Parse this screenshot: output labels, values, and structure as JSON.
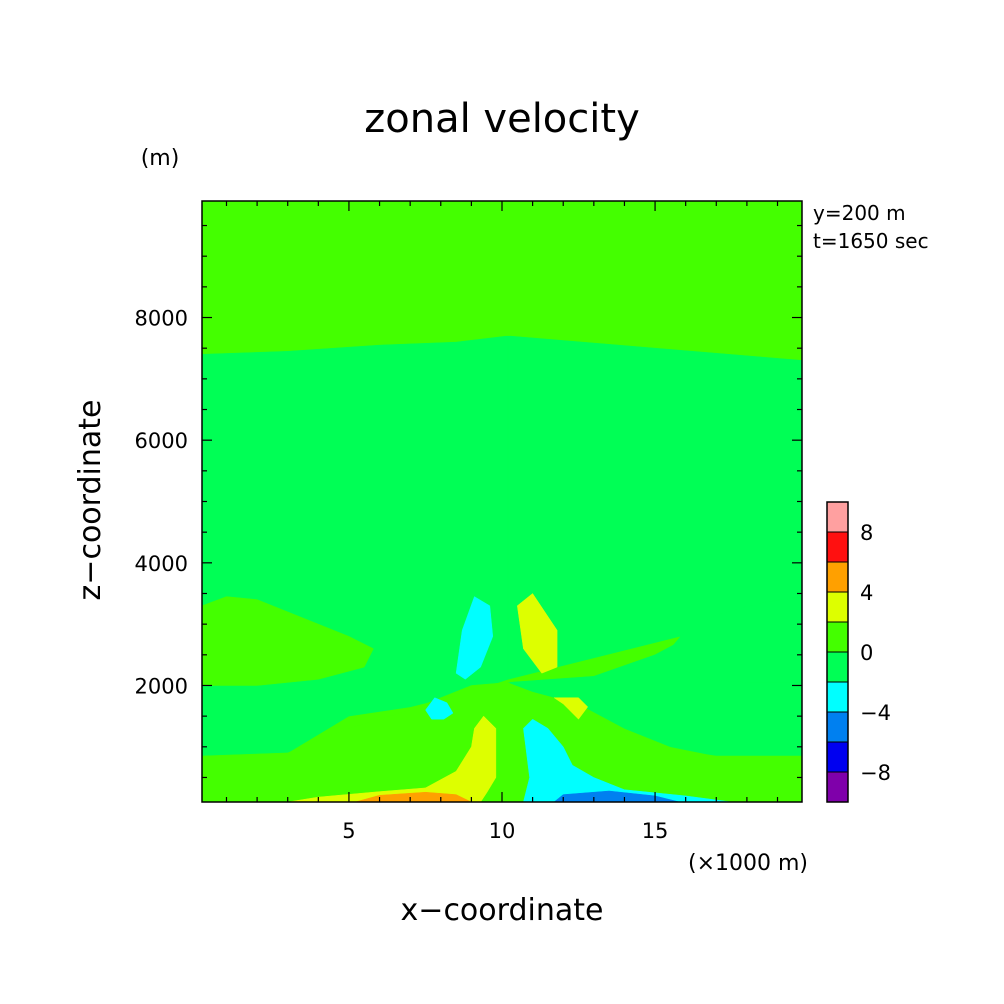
{
  "chart_data": {
    "type": "heatmap",
    "title": "zonal velocity",
    "xlabel": "x−coordinate",
    "ylabel": "z−coordinate",
    "x_unit": "(×1000 m)",
    "y_unit": "(m)",
    "annotations": [
      "y=200 m",
      "t=1650 sec"
    ],
    "xlim": [
      0.2,
      19.8
    ],
    "ylim": [
      100,
      9900
    ],
    "xticks": [
      5,
      10,
      15
    ],
    "yticks": [
      2000,
      4000,
      6000,
      8000
    ],
    "xtick_labels": [
      "5",
      "10",
      "15"
    ],
    "ytick_labels": [
      "2000",
      "4000",
      "6000",
      "8000"
    ],
    "colorbar": {
      "levels": [
        -10,
        -8,
        -6,
        -4,
        -2,
        0,
        2,
        4,
        6,
        8,
        10
      ],
      "colors": [
        "#7f00aa",
        "#0000f0",
        "#0080f0",
        "#00ffff",
        "#00ff55",
        "#44ff00",
        "#ddff00",
        "#ffa000",
        "#ff1010",
        "#ffa0a0"
      ],
      "tick_values": [
        8,
        4,
        0,
        -4,
        -8
      ],
      "tick_labels": [
        "8",
        "4",
        "0",
        "−4",
        "−8"
      ]
    },
    "regions": [
      {
        "level": "-2 to 0",
        "color": "#00ff55",
        "points": [
          [
            10.2,
            7700
          ],
          [
            19.8,
            7300
          ],
          [
            19.8,
            3300
          ],
          [
            10.2,
            2100
          ]
        ]
      },
      {
        "level": "-2 to 0",
        "color": "#00ff55",
        "points": [
          [
            0.2,
            7400
          ],
          [
            3,
            7450
          ],
          [
            6,
            7550
          ],
          [
            8.5,
            7600
          ],
          [
            10.2,
            7700
          ],
          [
            10.2,
            2100
          ],
          [
            9,
            1900
          ],
          [
            7,
            1650
          ],
          [
            5,
            1500
          ],
          [
            3,
            900
          ],
          [
            0.2,
            850
          ]
        ]
      },
      {
        "level": "-2 to 0",
        "color": "#00ff55",
        "points": [
          [
            10.2,
            2050
          ],
          [
            11,
            1900
          ],
          [
            12.5,
            1700
          ],
          [
            14,
            1300
          ],
          [
            15.5,
            1000
          ],
          [
            17,
            850
          ],
          [
            19.8,
            850
          ],
          [
            19.8,
            3300
          ],
          [
            18,
            3300
          ],
          [
            15,
            2500
          ],
          [
            13,
            2150
          ]
        ]
      },
      {
        "level": "0 to 2",
        "color": "#44ff00",
        "points": [
          [
            0.2,
            3300
          ],
          [
            1,
            3450
          ],
          [
            2,
            3400
          ],
          [
            3.5,
            3100
          ],
          [
            5,
            2800
          ],
          [
            5.8,
            2600
          ],
          [
            5.5,
            2300
          ],
          [
            4,
            2100
          ],
          [
            2,
            2000
          ],
          [
            0.2,
            2000
          ]
        ]
      },
      {
        "level": "-2 to 0",
        "color": "#00ff55",
        "points": [
          [
            15.5,
            2600
          ],
          [
            16,
            2900
          ],
          [
            17,
            3150
          ],
          [
            18.5,
            3350
          ],
          [
            19.8,
            3450
          ],
          [
            19.8,
            2050
          ],
          [
            18,
            2050
          ],
          [
            16.5,
            2100
          ],
          [
            15.8,
            2300
          ]
        ]
      },
      {
        "level": "0 to 2",
        "color": "#44ff00",
        "points": [
          [
            0.2,
            850
          ],
          [
            3,
            900
          ],
          [
            5,
            1300
          ],
          [
            7,
            1600
          ],
          [
            9,
            2000
          ],
          [
            10.2,
            2050
          ],
          [
            10.2,
            100
          ],
          [
            0.2,
            100
          ]
        ]
      },
      {
        "level": "0 to 2",
        "color": "#44ff00",
        "points": [
          [
            10.2,
            100
          ],
          [
            10.2,
            2050
          ],
          [
            11,
            1800
          ],
          [
            12.5,
            1500
          ],
          [
            14,
            1200
          ],
          [
            15.5,
            950
          ],
          [
            17,
            850
          ],
          [
            19.8,
            850
          ],
          [
            19.8,
            100
          ]
        ]
      },
      {
        "level": "2 to 4",
        "color": "#ddff00",
        "points": [
          [
            3,
            100
          ],
          [
            4,
            180
          ],
          [
            6,
            270
          ],
          [
            7.5,
            330
          ],
          [
            8.5,
            600
          ],
          [
            9,
            1000
          ],
          [
            9.1,
            1300
          ],
          [
            9.4,
            1500
          ],
          [
            9.8,
            1300
          ],
          [
            9.8,
            500
          ],
          [
            9.5,
            250
          ],
          [
            9.3,
            100
          ]
        ]
      },
      {
        "level": "4 to 6",
        "color": "#ffa000",
        "points": [
          [
            5.2,
            100
          ],
          [
            6,
            210
          ],
          [
            7.5,
            260
          ],
          [
            8.5,
            220
          ],
          [
            9,
            100
          ]
        ]
      },
      {
        "level": "-4 to -2",
        "color": "#00ffff",
        "points": [
          [
            10.7,
            100
          ],
          [
            10.9,
            500
          ],
          [
            10.8,
            900
          ],
          [
            10.7,
            1300
          ],
          [
            11,
            1450
          ],
          [
            11.5,
            1300
          ],
          [
            12,
            1000
          ],
          [
            12.3,
            700
          ],
          [
            13,
            500
          ],
          [
            14,
            300
          ],
          [
            16,
            200
          ],
          [
            17.5,
            100
          ]
        ]
      },
      {
        "level": "-6 to -4",
        "color": "#0080f0",
        "points": [
          [
            11.7,
            100
          ],
          [
            12,
            220
          ],
          [
            13.5,
            280
          ],
          [
            15,
            200
          ],
          [
            15.8,
            100
          ]
        ]
      },
      {
        "level": "-4 to -2",
        "color": "#00ffff",
        "points": [
          [
            8.5,
            2200
          ],
          [
            8.7,
            2900
          ],
          [
            9.1,
            3450
          ],
          [
            9.6,
            3300
          ],
          [
            9.7,
            2800
          ],
          [
            9.3,
            2300
          ],
          [
            8.8,
            2100
          ]
        ]
      },
      {
        "level": "2 to 4",
        "color": "#ddff00",
        "points": [
          [
            10.5,
            3300
          ],
          [
            10.7,
            2600
          ],
          [
            11.3,
            2200
          ],
          [
            11.8,
            2300
          ],
          [
            11.8,
            2900
          ],
          [
            11,
            3500
          ]
        ]
      },
      {
        "level": "-4 to -2",
        "color": "#00ffff",
        "points": [
          [
            7.5,
            1600
          ],
          [
            7.8,
            1800
          ],
          [
            8.2,
            1720
          ],
          [
            8.4,
            1550
          ],
          [
            8.1,
            1450
          ],
          [
            7.7,
            1450
          ]
        ]
      },
      {
        "level": "2 to 4",
        "color": "#ddff00",
        "points": [
          [
            11.7,
            1800
          ],
          [
            12.5,
            1800
          ],
          [
            12.8,
            1650
          ],
          [
            12.5,
            1450
          ],
          [
            12.0,
            1700
          ]
        ]
      }
    ],
    "discontinuity_x": 10.2
  }
}
